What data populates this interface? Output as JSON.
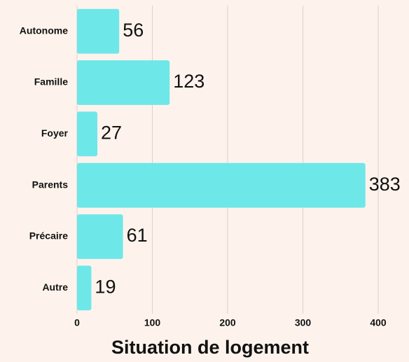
{
  "chart_data": {
    "type": "bar",
    "orientation": "horizontal",
    "title": "Situation de logement",
    "categories": [
      "Autonome",
      "Famille",
      "Foyer",
      "Parents",
      "Précaire",
      "Autre"
    ],
    "values": [
      56,
      123,
      27,
      383,
      61,
      19
    ],
    "color": "#6ee7e9",
    "xlim": [
      0,
      420
    ],
    "xticks": [
      0,
      100,
      200,
      300,
      400
    ],
    "grid": true
  }
}
